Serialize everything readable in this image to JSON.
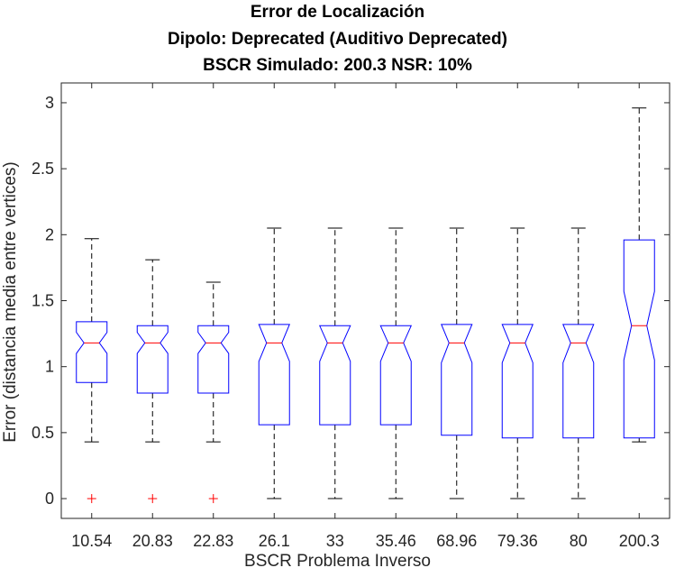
{
  "chart_data": {
    "type": "boxplot",
    "title": [
      "Error de Localización",
      "Dipolo: Deprecated (Auditivo Deprecated)",
      "BSCR Simulado: 200.3 NSR: 10%"
    ],
    "xlabel": "BSCR Problema Inverso",
    "ylabel": "Error (distancia media entre vertices)",
    "ylim": [
      -0.15,
      3.15
    ],
    "yticks": [
      0,
      0.5,
      1,
      1.5,
      2,
      2.5,
      3
    ],
    "ytick_labels": [
      "0",
      "0.5",
      "1",
      "1.5",
      "2",
      "2.5",
      "3"
    ],
    "categories": [
      "10.54",
      "20.83",
      "22.83",
      "26.1",
      "33",
      "35.46",
      "68.96",
      "79.36",
      "80",
      "200.3"
    ],
    "boxes": [
      {
        "whisker_low": 0.43,
        "q1": 0.88,
        "median": 1.18,
        "q3": 1.34,
        "whisker_high": 1.97,
        "notch_low": 1.1,
        "notch_high": 1.26,
        "outliers": [
          0
        ]
      },
      {
        "whisker_low": 0.43,
        "q1": 0.8,
        "median": 1.18,
        "q3": 1.31,
        "whisker_high": 1.81,
        "notch_low": 1.1,
        "notch_high": 1.26,
        "outliers": [
          0
        ]
      },
      {
        "whisker_low": 0.43,
        "q1": 0.8,
        "median": 1.18,
        "q3": 1.31,
        "whisker_high": 1.64,
        "notch_low": 1.1,
        "notch_high": 1.26,
        "outliers": [
          0
        ]
      },
      {
        "whisker_low": 0.0,
        "q1": 0.56,
        "median": 1.18,
        "q3": 1.32,
        "whisker_high": 2.05,
        "notch_low": 1.04,
        "notch_high": 1.32,
        "outliers": []
      },
      {
        "whisker_low": 0.0,
        "q1": 0.56,
        "median": 1.18,
        "q3": 1.31,
        "whisker_high": 2.05,
        "notch_low": 1.04,
        "notch_high": 1.31,
        "outliers": []
      },
      {
        "whisker_low": 0.0,
        "q1": 0.56,
        "median": 1.18,
        "q3": 1.31,
        "whisker_high": 2.05,
        "notch_low": 1.04,
        "notch_high": 1.31,
        "outliers": []
      },
      {
        "whisker_low": 0.0,
        "q1": 0.48,
        "median": 1.18,
        "q3": 1.32,
        "whisker_high": 2.05,
        "notch_low": 1.03,
        "notch_high": 1.32,
        "outliers": []
      },
      {
        "whisker_low": 0.0,
        "q1": 0.46,
        "median": 1.18,
        "q3": 1.32,
        "whisker_high": 2.05,
        "notch_low": 1.03,
        "notch_high": 1.32,
        "outliers": []
      },
      {
        "whisker_low": 0.0,
        "q1": 0.46,
        "median": 1.18,
        "q3": 1.32,
        "whisker_high": 2.05,
        "notch_low": 1.03,
        "notch_high": 1.32,
        "outliers": []
      },
      {
        "whisker_low": 0.43,
        "q1": 0.46,
        "median": 1.31,
        "q3": 1.96,
        "whisker_high": 2.96,
        "notch_low": 1.05,
        "notch_high": 1.57,
        "outliers": []
      }
    ],
    "colors": {
      "box": "#0000ff",
      "median": "#ff0000",
      "outlier": "#ff0000",
      "whisker": "#000000",
      "axis": "#262626"
    },
    "grid": false,
    "legend": "none"
  }
}
